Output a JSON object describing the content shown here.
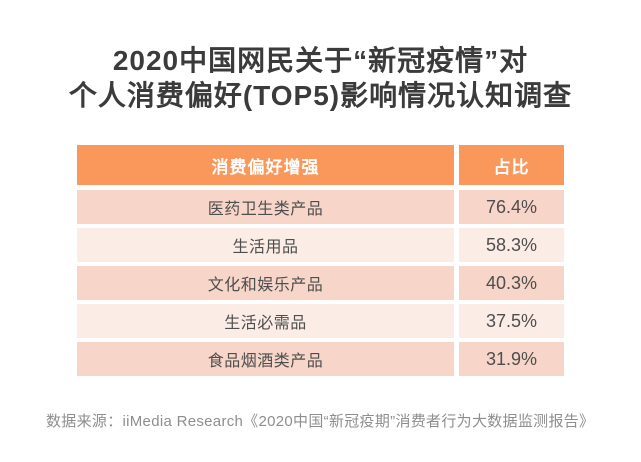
{
  "title": {
    "line1": "2020中国网民关于“新冠疫情”对",
    "line2": "个人消费偏好(TOP5)影响情况认知调查"
  },
  "table": {
    "headers": {
      "category": "消费偏好增强",
      "share": "占比"
    },
    "rows": [
      {
        "label": "医药卫生类产品",
        "value": "76.4%"
      },
      {
        "label": "生活用品",
        "value": "58.3%"
      },
      {
        "label": "文化和娱乐产品",
        "value": "40.3%"
      },
      {
        "label": "生活必需品",
        "value": "37.5%"
      },
      {
        "label": "食品烟酒类产品",
        "value": "31.9%"
      }
    ]
  },
  "footer": {
    "source": "数据来源：iiMedia Research《2020中国“新冠疫期”消费者行为大数据监测报告》"
  },
  "colors": {
    "header_bg": "#fa975a",
    "row_dark": "#f7d5c9",
    "row_light": "#fbece6",
    "title_text": "#3b3b3b",
    "cell_text": "#4e4e4e",
    "footer_text": "#8e8e8e",
    "header_text": "#ffffff",
    "background": "#ffffff"
  },
  "chart_data": {
    "type": "table",
    "title": "2020中国网民关于“新冠疫情”对个人消费偏好(TOP5)影响情况认知调查",
    "columns": [
      "消费偏好增强",
      "占比"
    ],
    "categories": [
      "医药卫生类产品",
      "生活用品",
      "文化和娱乐产品",
      "生活必需品",
      "食品烟酒类产品"
    ],
    "values": [
      76.4,
      58.3,
      40.3,
      37.5,
      31.9
    ],
    "unit": "%",
    "legend": "none",
    "source": "数据来源：iiMedia Research《2020中国“新冠疫期”消费者行为大数据监测报告》"
  }
}
